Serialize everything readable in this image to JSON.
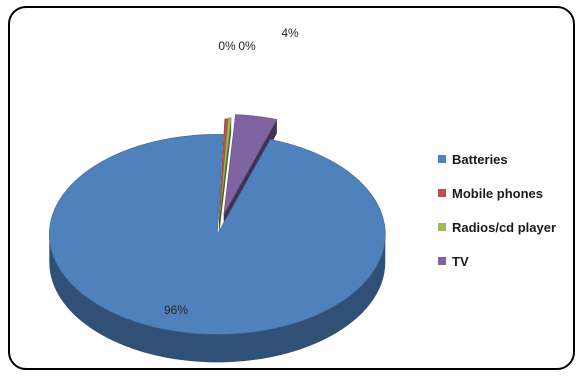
{
  "chart_data": {
    "type": "pie",
    "style": "3d-exploded",
    "categories": [
      "Batteries",
      "Mobile phones",
      "Radios/cd player",
      "TV"
    ],
    "values": [
      96,
      0,
      0,
      4
    ],
    "data_labels": [
      "96%",
      "0%",
      "0%",
      "4%"
    ],
    "colors": [
      "#4f81bd",
      "#c0504d",
      "#9bbb59",
      "#8064a2"
    ],
    "title": "",
    "legend_position": "right"
  }
}
